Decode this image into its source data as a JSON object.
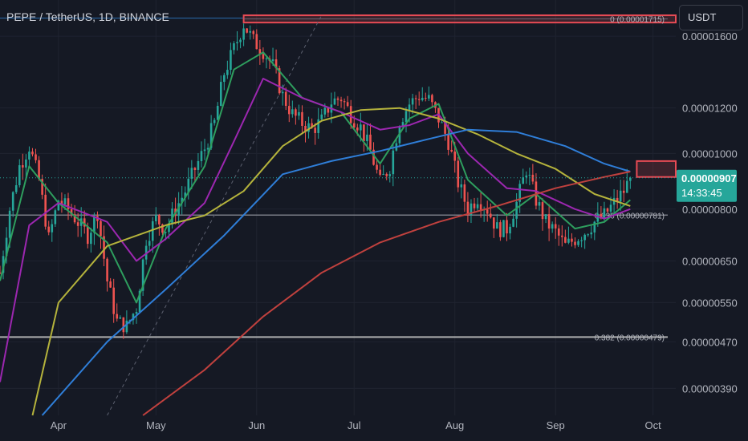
{
  "header": {
    "symbol_title": "PEPE / TetherUS, 1D, BINANCE",
    "currency_button": "USDT"
  },
  "price_badge": {
    "price": "0.00000907",
    "countdown": "14:33:45",
    "color": "#26a69a"
  },
  "colors": {
    "background": "#151924",
    "up_candle": "#26a69a",
    "down_candle": "#ef5350",
    "ma_green": "#2e9e5e",
    "ma_purple": "#9c27b0",
    "ma_yellow": "#b5b33c",
    "ma_blue": "#2f7ed8",
    "ma_red": "#c0413e",
    "resistance_zone": "#e84b55",
    "fib_line": "#c8c8c8"
  },
  "chart_data": {
    "type": "candlestick",
    "title": "PEPE / TetherUS, 1D, BINANCE",
    "x_ticks": [
      "Apr",
      "May",
      "Jun",
      "Jul",
      "Aug",
      "Sep",
      "Oct"
    ],
    "x_tick_dates": [
      "2023-04-01",
      "2023-05-01",
      "2023-06-01",
      "2023-07-01",
      "2023-08-01",
      "2023-09-01",
      "2023-10-01"
    ],
    "x_range": [
      "2023-03-14",
      "2023-10-08"
    ],
    "y_scale": "log",
    "y_ticks": [
      "0.00001600",
      "0.00001200",
      "0.00001000",
      "0.00000800",
      "0.00000650",
      "0.00000550",
      "0.00000470",
      "0.00000390"
    ],
    "y_tick_values": [
      1.6e-05,
      1.2e-05,
      1e-05,
      8e-06,
      6.5e-06,
      5.5e-06,
      4.7e-06,
      3.9e-06
    ],
    "y_range": [
      3.5e-06,
      1.85e-05
    ],
    "grid": true,
    "last_price": 9.07e-06,
    "price_points": [
      [
        "2023-03-14",
        6.2e-06
      ],
      [
        "2023-03-17",
        8e-06
      ],
      [
        "2023-03-20",
        9.5e-06
      ],
      [
        "2023-03-23",
        1.03e-05
      ],
      [
        "2023-03-26",
        9e-06
      ],
      [
        "2023-03-29",
        7.1e-06
      ],
      [
        "2023-04-01",
        8.3e-06
      ],
      [
        "2023-04-04",
        8e-06
      ],
      [
        "2023-04-07",
        7.6e-06
      ],
      [
        "2023-04-10",
        7.2e-06
      ],
      [
        "2023-04-13",
        7.9e-06
      ],
      [
        "2023-04-16",
        6e-06
      ],
      [
        "2023-04-19",
        5.1e-06
      ],
      [
        "2023-04-22",
        5e-06
      ],
      [
        "2023-04-25",
        5.4e-06
      ],
      [
        "2023-04-28",
        7.1e-06
      ],
      [
        "2023-05-01",
        7.7e-06
      ],
      [
        "2023-05-04",
        7.4e-06
      ],
      [
        "2023-05-07",
        8e-06
      ],
      [
        "2023-05-10",
        8.6e-06
      ],
      [
        "2023-05-13",
        9.4e-06
      ],
      [
        "2023-05-16",
        1.02e-05
      ],
      [
        "2023-05-19",
        1.13e-05
      ],
      [
        "2023-05-22",
        1.38e-05
      ],
      [
        "2023-05-25",
        1.52e-05
      ],
      [
        "2023-05-28",
        1.68e-05
      ],
      [
        "2023-05-31",
        1.57e-05
      ],
      [
        "2023-06-03",
        1.51e-05
      ],
      [
        "2023-06-06",
        1.42e-05
      ],
      [
        "2023-06-09",
        1.26e-05
      ],
      [
        "2023-06-12",
        1.17e-05
      ],
      [
        "2023-06-15",
        1.13e-05
      ],
      [
        "2023-06-18",
        1.1e-05
      ],
      [
        "2023-06-21",
        1.14e-05
      ],
      [
        "2023-06-24",
        1.23e-05
      ],
      [
        "2023-06-27",
        1.25e-05
      ],
      [
        "2023-06-30",
        1.17e-05
      ],
      [
        "2023-07-03",
        1.11e-05
      ],
      [
        "2023-07-06",
        1.01e-05
      ],
      [
        "2023-07-09",
        8.9e-06
      ],
      [
        "2023-07-12",
        9.5e-06
      ],
      [
        "2023-07-15",
        1.14e-05
      ],
      [
        "2023-07-18",
        1.22e-05
      ],
      [
        "2023-07-21",
        1.26e-05
      ],
      [
        "2023-07-24",
        1.24e-05
      ],
      [
        "2023-07-27",
        1.15e-05
      ],
      [
        "2023-07-30",
        1.05e-05
      ],
      [
        "2023-08-02",
        8.9e-06
      ],
      [
        "2023-08-05",
        8e-06
      ],
      [
        "2023-08-08",
        8.4e-06
      ],
      [
        "2023-08-11",
        8e-06
      ],
      [
        "2023-08-14",
        7.4e-06
      ],
      [
        "2023-08-17",
        7.4e-06
      ],
      [
        "2023-08-20",
        8.2e-06
      ],
      [
        "2023-08-23",
        9.4e-06
      ],
      [
        "2023-08-26",
        8.3e-06
      ],
      [
        "2023-08-29",
        7.6e-06
      ],
      [
        "2023-09-01",
        7.3e-06
      ],
      [
        "2023-09-04",
        6.9e-06
      ],
      [
        "2023-09-07",
        7.1e-06
      ],
      [
        "2023-09-10",
        7.3e-06
      ],
      [
        "2023-09-13",
        7.6e-06
      ],
      [
        "2023-09-16",
        7.8e-06
      ],
      [
        "2023-09-19",
        8.2e-06
      ],
      [
        "2023-09-22",
        8.6e-06
      ],
      [
        "2023-09-24",
        9.07e-06
      ]
    ],
    "moving_averages": [
      {
        "color": "#2e9e5e",
        "points": [
          [
            "2023-03-14",
            6e-06
          ],
          [
            "2023-03-23",
            9.5e-06
          ],
          [
            "2023-04-01",
            8.2e-06
          ],
          [
            "2023-04-16",
            7e-06
          ],
          [
            "2023-04-25",
            5.5e-06
          ],
          [
            "2023-05-04",
            7.4e-06
          ],
          [
            "2023-05-16",
            9.5e-06
          ],
          [
            "2023-05-25",
            1.4e-05
          ],
          [
            "2023-06-03",
            1.5e-05
          ],
          [
            "2023-06-15",
            1.25e-05
          ],
          [
            "2023-06-27",
            1.18e-05
          ],
          [
            "2023-07-09",
            9.6e-06
          ],
          [
            "2023-07-18",
            1.15e-05
          ],
          [
            "2023-07-27",
            1.22e-05
          ],
          [
            "2023-08-05",
            9e-06
          ],
          [
            "2023-08-17",
            7.8e-06
          ],
          [
            "2023-08-26",
            8.5e-06
          ],
          [
            "2023-09-07",
            7.4e-06
          ],
          [
            "2023-09-16",
            7.6e-06
          ],
          [
            "2023-09-24",
            8.3e-06
          ]
        ]
      },
      {
        "color": "#9c27b0",
        "points": [
          [
            "2023-03-14",
            4e-06
          ],
          [
            "2023-03-23",
            7.5e-06
          ],
          [
            "2023-04-01",
            8.2e-06
          ],
          [
            "2023-04-16",
            7.6e-06
          ],
          [
            "2023-04-25",
            6.5e-06
          ],
          [
            "2023-05-04",
            7.1e-06
          ],
          [
            "2023-05-16",
            8.2e-06
          ],
          [
            "2023-05-25",
            1.05e-05
          ],
          [
            "2023-06-03",
            1.35e-05
          ],
          [
            "2023-06-15",
            1.25e-05
          ],
          [
            "2023-06-27",
            1.18e-05
          ],
          [
            "2023-07-09",
            1.1e-05
          ],
          [
            "2023-07-18",
            1.12e-05
          ],
          [
            "2023-07-27",
            1.17e-05
          ],
          [
            "2023-08-05",
            1e-05
          ],
          [
            "2023-08-17",
            8.7e-06
          ],
          [
            "2023-08-26",
            8.6e-06
          ],
          [
            "2023-09-07",
            8e-06
          ],
          [
            "2023-09-16",
            7.7e-06
          ],
          [
            "2023-09-24",
            8e-06
          ]
        ]
      },
      {
        "color": "#b5b33c",
        "points": [
          [
            "2023-03-24",
            3.5e-06
          ],
          [
            "2023-04-01",
            5.5e-06
          ],
          [
            "2023-04-16",
            6.9e-06
          ],
          [
            "2023-05-04",
            7.5e-06
          ],
          [
            "2023-05-16",
            7.8e-06
          ],
          [
            "2023-05-28",
            8.6e-06
          ],
          [
            "2023-06-09",
            1.03e-05
          ],
          [
            "2023-06-21",
            1.14e-05
          ],
          [
            "2023-07-03",
            1.19e-05
          ],
          [
            "2023-07-15",
            1.2e-05
          ],
          [
            "2023-07-27",
            1.15e-05
          ],
          [
            "2023-08-08",
            1.08e-05
          ],
          [
            "2023-08-20",
            1e-05
          ],
          [
            "2023-09-01",
            9.4e-06
          ],
          [
            "2023-09-13",
            8.5e-06
          ],
          [
            "2023-09-24",
            8.1e-06
          ]
        ]
      },
      {
        "color": "#2f7ed8",
        "points": [
          [
            "2023-03-27",
            3.5e-06
          ],
          [
            "2023-04-16",
            4.7e-06
          ],
          [
            "2023-05-04",
            5.8e-06
          ],
          [
            "2023-05-22",
            7.2e-06
          ],
          [
            "2023-06-09",
            9.2e-06
          ],
          [
            "2023-06-24",
            9.7e-06
          ],
          [
            "2023-07-09",
            1.01e-05
          ],
          [
            "2023-07-24",
            1.06e-05
          ],
          [
            "2023-08-05",
            1.1e-05
          ],
          [
            "2023-08-20",
            1.09e-05
          ],
          [
            "2023-09-04",
            1.03e-05
          ],
          [
            "2023-09-16",
            9.6e-06
          ],
          [
            "2023-09-24",
            9.3e-06
          ]
        ]
      },
      {
        "color": "#c0413e",
        "points": [
          [
            "2023-04-27",
            3.5e-06
          ],
          [
            "2023-05-16",
            4.2e-06
          ],
          [
            "2023-06-03",
            5.2e-06
          ],
          [
            "2023-06-21",
            6.2e-06
          ],
          [
            "2023-07-09",
            7e-06
          ],
          [
            "2023-07-27",
            7.6e-06
          ],
          [
            "2023-08-14",
            8.1e-06
          ],
          [
            "2023-09-01",
            8.7e-06
          ],
          [
            "2023-09-16",
            9.1e-06
          ],
          [
            "2023-09-24",
            9.3e-06
          ]
        ]
      }
    ],
    "horizontal_lines": [
      {
        "label": "0.382 (0.00000479)",
        "value": 4.79e-06,
        "color": "#c8c8c8"
      },
      {
        "label": "0.236 (0.00000781)",
        "value": 7.81e-06,
        "color": "#8a8d96"
      },
      {
        "label": "0 (0.00001715)",
        "value": 1.715e-05,
        "color": "#6f7480"
      }
    ],
    "zones": [
      {
        "label": "resistance-top",
        "top": 1.74e-05,
        "bottom": 1.69e-05
      },
      {
        "label": "resistance-current",
        "top": 9.7e-06,
        "bottom": 9.1e-06
      }
    ],
    "reference_lines": [
      {
        "from": [
          "2023-03-14",
          1.72e-05
        ],
        "to": [
          "2023-05-28",
          1.72e-05
        ],
        "color": "#2b6cb0"
      }
    ],
    "fib_trend_line": {
      "from": [
        "2023-04-16",
        3.5e-06
      ],
      "to": [
        "2023-06-21",
        1.74e-05
      ]
    }
  }
}
